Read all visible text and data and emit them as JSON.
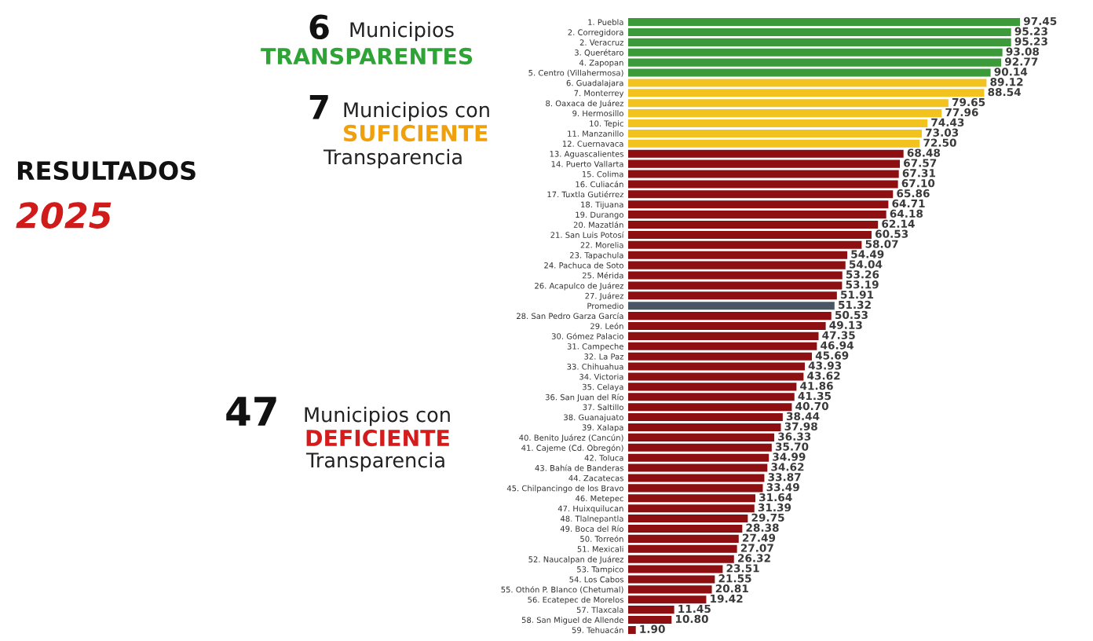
{
  "chart_data": {
    "type": "bar",
    "orientation": "horizontal",
    "title": "RESULTADOS",
    "subtitle": "2025",
    "categories": [
      "1. Puebla",
      "2. Corregidora",
      "2. Veracruz",
      "3. Querétaro",
      "4. Zapopan",
      "5. Centro (Villahermosa)",
      "6. Guadalajara",
      "7. Monterrey",
      "8. Oaxaca de Juárez",
      "9. Hermosillo",
      "10. Tepic",
      "11. Manzanillo",
      "12. Cuernavaca",
      "13. Aguascalientes",
      "14. Puerto Vallarta",
      "15. Colima",
      "16. Culiacán",
      "17. Tuxtla Gutiérrez",
      "18. Tijuana",
      "19. Durango",
      "20. Mazatlán",
      "21. San Luis Potosí",
      "22. Morelia",
      "23. Tapachula",
      "24. Pachuca de Soto",
      "25. Mérida",
      "26. Acapulco de Juárez",
      "27. Juárez",
      "Promedio",
      "28. San Pedro Garza García",
      "29. León",
      "30. Gómez Palacio",
      "31. Campeche",
      "32. La Paz",
      "33. Chihuahua",
      "34. Victoria",
      "35. Celaya",
      "36. San Juan del Río",
      "37. Saltillo",
      "38. Guanajuato",
      "39. Xalapa",
      "40. Benito Juárez (Cancún)",
      "41. Cajeme (Cd. Obregón)",
      "42. Toluca",
      "43. Bahía de Banderas",
      "44. Zacatecas",
      "45. Chilpancingo de los Bravo",
      "46. Metepec",
      "47. Huixquilucan",
      "48. Tlalnepantla",
      "49. Boca del Río",
      "50. Torreón",
      "51. Mexicali",
      "52. Naucalpan de Juárez",
      "53. Tampico",
      "54. Los Cabos",
      "55. Othón P. Blanco (Chetumal)",
      "56. Ecatepec de Morelos",
      "57. Tlaxcala",
      "58. San Miguel de Allende",
      "59. Tehuacán"
    ],
    "values": [
      97.45,
      95.23,
      95.23,
      93.08,
      92.77,
      90.14,
      89.12,
      88.54,
      79.65,
      77.96,
      74.43,
      73.03,
      72.5,
      68.48,
      67.57,
      67.31,
      67.1,
      65.86,
      64.71,
      64.18,
      62.14,
      60.53,
      58.07,
      54.49,
      54.04,
      53.26,
      53.19,
      51.91,
      51.32,
      50.53,
      49.13,
      47.35,
      46.94,
      45.69,
      43.93,
      43.62,
      41.86,
      41.35,
      40.7,
      38.44,
      37.98,
      36.33,
      35.7,
      34.99,
      34.62,
      33.87,
      33.49,
      31.64,
      31.39,
      29.75,
      28.38,
      27.49,
      27.07,
      26.32,
      23.51,
      21.55,
      20.81,
      19.42,
      11.45,
      10.8,
      1.9
    ],
    "value_labels": [
      "97.45",
      "95.23",
      "95.23",
      "93.08",
      "92.77",
      "90.14",
      "89.12",
      "88.54",
      "79.65",
      "77.96",
      "74.43",
      "73.03",
      "72.50",
      "68.48",
      "67.57",
      "67.31",
      "67.10",
      "65.86",
      "64.71",
      "64.18",
      "62.14",
      "60.53",
      "58.07",
      "54.49",
      "54.04",
      "53.26",
      "53.19",
      "51.91",
      "51.32",
      "50.53",
      "49.13",
      "47.35",
      "46.94",
      "45.69",
      "43.93",
      "43.62",
      "41.86",
      "41.35",
      "40.70",
      "38.44",
      "37.98",
      "36.33",
      "35.70",
      "34.99",
      "34.62",
      "33.87",
      "33.49",
      "31.64",
      "31.39",
      "29.75",
      "28.38",
      "27.49",
      "27.07",
      "26.32",
      "23.51",
      "21.55",
      "20.81",
      "19.42",
      "11.45",
      "10.80",
      "1.90"
    ],
    "colors": [
      "#3d9a3a",
      "#3d9a3a",
      "#3d9a3a",
      "#3d9a3a",
      "#3d9a3a",
      "#3d9a3a",
      "#f2c31f",
      "#f2c31f",
      "#f2c31f",
      "#f2c31f",
      "#f2c31f",
      "#f2c31f",
      "#f2c31f",
      "#8e0f12",
      "#8e0f12",
      "#8e0f12",
      "#8e0f12",
      "#8e0f12",
      "#8e0f12",
      "#8e0f12",
      "#8e0f12",
      "#8e0f12",
      "#8e0f12",
      "#8e0f12",
      "#8e0f12",
      "#8e0f12",
      "#8e0f12",
      "#8e0f12",
      "#4a5663",
      "#8e0f12",
      "#8e0f12",
      "#8e0f12",
      "#8e0f12",
      "#8e0f12",
      "#8e0f12",
      "#8e0f12",
      "#8e0f12",
      "#8e0f12",
      "#8e0f12",
      "#8e0f12",
      "#8e0f12",
      "#8e0f12",
      "#8e0f12",
      "#8e0f12",
      "#8e0f12",
      "#8e0f12",
      "#8e0f12",
      "#8e0f12",
      "#8e0f12",
      "#8e0f12",
      "#8e0f12",
      "#8e0f12",
      "#8e0f12",
      "#8e0f12",
      "#8e0f12",
      "#8e0f12",
      "#8e0f12",
      "#8e0f12",
      "#8e0f12",
      "#8e0f12",
      "#8e0f12"
    ],
    "tick_labels": "y",
    "grid": false,
    "annotations": [
      "6",
      "Municipios",
      "TRANSPARENTES",
      "7",
      "Municipios con",
      "SUFICIENTE",
      "Transparencia",
      "47",
      "Municipios con",
      "DEFICIENTE",
      "Transparencia"
    ]
  }
}
